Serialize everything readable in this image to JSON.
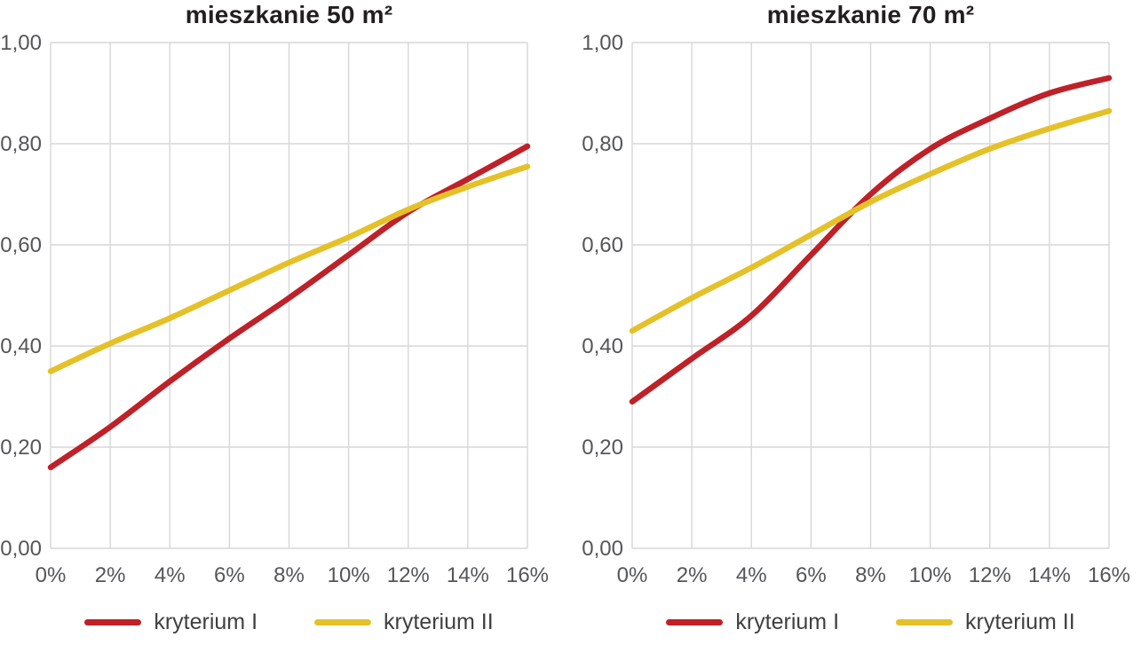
{
  "colors": {
    "series1": "#be2128",
    "series2": "#e5c129",
    "grid": "#d7d7d9",
    "axis_text": "#54565a",
    "title_text": "#231f20",
    "legend_text": "#404042"
  },
  "chart_data": [
    {
      "type": "line",
      "title": "mieszkanie 50 m²",
      "categories": [
        "0%",
        "2%",
        "4%",
        "6%",
        "8%",
        "10%",
        "12%",
        "14%",
        "16%"
      ],
      "y_ticks": [
        "0,00",
        "0,20",
        "0,40",
        "0,60",
        "0,80",
        "1,00"
      ],
      "xlabel": "",
      "ylabel": "",
      "ylim": [
        0,
        1
      ],
      "grid": true,
      "legend_position": "bottom",
      "series": [
        {
          "name": "kryterium I",
          "color": "#be2128",
          "values": [
            0.16,
            0.24,
            0.33,
            0.415,
            0.495,
            0.58,
            0.665,
            0.73,
            0.795
          ]
        },
        {
          "name": "kryterium II",
          "color": "#e5c129",
          "values": [
            0.35,
            0.405,
            0.455,
            0.51,
            0.565,
            0.615,
            0.67,
            0.715,
            0.755
          ]
        }
      ]
    },
    {
      "type": "line",
      "title": "mieszkanie 70 m²",
      "categories": [
        "0%",
        "2%",
        "4%",
        "6%",
        "8%",
        "10%",
        "12%",
        "14%",
        "16%"
      ],
      "y_ticks": [
        "0,00",
        "0,20",
        "0,40",
        "0,60",
        "0,80",
        "1,00"
      ],
      "xlabel": "",
      "ylabel": "",
      "ylim": [
        0,
        1
      ],
      "grid": true,
      "legend_position": "bottom",
      "series": [
        {
          "name": "kryterium I",
          "color": "#be2128",
          "values": [
            0.29,
            0.375,
            0.46,
            0.58,
            0.7,
            0.79,
            0.85,
            0.9,
            0.93
          ]
        },
        {
          "name": "kryterium II",
          "color": "#e5c129",
          "values": [
            0.43,
            0.495,
            0.555,
            0.62,
            0.685,
            0.74,
            0.79,
            0.83,
            0.865
          ]
        }
      ]
    }
  ]
}
